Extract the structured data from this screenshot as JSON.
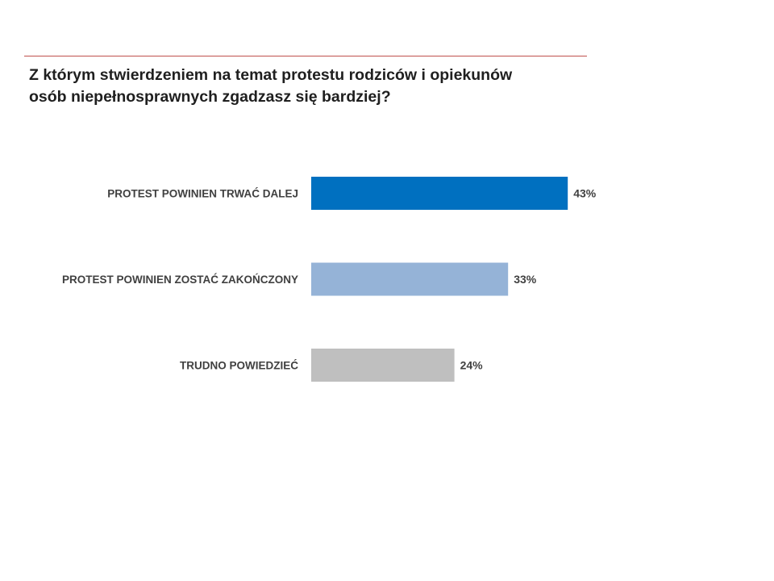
{
  "question": {
    "line1": "Z którym stwierdzeniem na temat protestu rodziców i opiekunów",
    "line2": "osób niepełnosprawnych zgadzasz się bardziej?"
  },
  "colors": {
    "rule": "#c0504d",
    "text": "#404040",
    "title": "#1f1f1f"
  },
  "chart_data": {
    "type": "bar",
    "orientation": "horizontal",
    "categories": [
      "PROTEST POWINIEN TRWAĆ DALEJ",
      "PROTEST POWINIEN ZOSTAĆ ZAKOŃCZONY",
      "TRUDNO POWIEDZIEĆ"
    ],
    "values": [
      43,
      33,
      24
    ],
    "value_labels": [
      "43%",
      "33%",
      "24%"
    ],
    "bar_colors": [
      "#0070c0",
      "#95b3d7",
      "#bfbfbf"
    ],
    "unit": "%",
    "xlim": [
      0,
      100
    ],
    "grid": false,
    "legend": "none"
  }
}
